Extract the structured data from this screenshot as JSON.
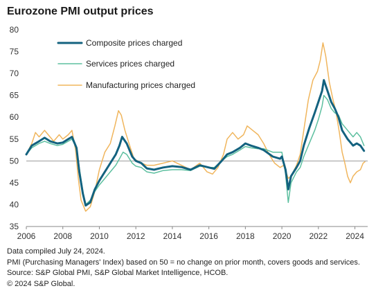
{
  "chart_data": {
    "type": "line",
    "title": "Eurozone PMI output prices",
    "xlabel": "",
    "ylabel": "",
    "xlim": [
      2006,
      2024.7
    ],
    "ylim": [
      35,
      80
    ],
    "xticks": [
      2006,
      2008,
      2010,
      2012,
      2014,
      2016,
      2018,
      2020,
      2022,
      2024
    ],
    "yticks": [
      35,
      40,
      45,
      50,
      55,
      60,
      65,
      70,
      75,
      80
    ],
    "reference_line": 50,
    "legend_position": "top-left",
    "series": [
      {
        "name": "Composite prices charged",
        "color": "#13627f",
        "width": 3,
        "points": [
          [
            2006.0,
            51.5
          ],
          [
            2006.3,
            53.5
          ],
          [
            2006.7,
            54.5
          ],
          [
            2007.0,
            55.3
          ],
          [
            2007.3,
            54.5
          ],
          [
            2007.7,
            54.0
          ],
          [
            2008.0,
            54.2
          ],
          [
            2008.3,
            55.0
          ],
          [
            2008.5,
            55.5
          ],
          [
            2008.75,
            53.0
          ],
          [
            2008.9,
            47.5
          ],
          [
            2009.1,
            42.5
          ],
          [
            2009.25,
            39.8
          ],
          [
            2009.5,
            40.5
          ],
          [
            2009.75,
            43.5
          ],
          [
            2010.0,
            45.5
          ],
          [
            2010.3,
            47.5
          ],
          [
            2010.6,
            49.5
          ],
          [
            2010.9,
            51.5
          ],
          [
            2011.1,
            53.5
          ],
          [
            2011.25,
            55.5
          ],
          [
            2011.5,
            54.0
          ],
          [
            2011.8,
            51.0
          ],
          [
            2012.0,
            50.0
          ],
          [
            2012.3,
            49.5
          ],
          [
            2012.6,
            48.3
          ],
          [
            2013.0,
            48.0
          ],
          [
            2013.5,
            48.5
          ],
          [
            2014.0,
            48.8
          ],
          [
            2014.5,
            48.6
          ],
          [
            2015.0,
            48.0
          ],
          [
            2015.5,
            49.0
          ],
          [
            2016.0,
            48.5
          ],
          [
            2016.3,
            48.2
          ],
          [
            2016.7,
            50.0
          ],
          [
            2017.0,
            51.5
          ],
          [
            2017.3,
            52.0
          ],
          [
            2017.7,
            53.0
          ],
          [
            2018.0,
            54.0
          ],
          [
            2018.3,
            53.5
          ],
          [
            2018.7,
            53.0
          ],
          [
            2019.0,
            52.5
          ],
          [
            2019.5,
            51.0
          ],
          [
            2019.9,
            50.5
          ],
          [
            2020.0,
            51.0
          ],
          [
            2020.2,
            48.0
          ],
          [
            2020.35,
            43.5
          ],
          [
            2020.5,
            46.5
          ],
          [
            2020.8,
            48.5
          ],
          [
            2021.0,
            50.0
          ],
          [
            2021.2,
            53.5
          ],
          [
            2021.5,
            57.5
          ],
          [
            2021.8,
            61.0
          ],
          [
            2022.0,
            63.5
          ],
          [
            2022.2,
            66.0
          ],
          [
            2022.3,
            68.5
          ],
          [
            2022.5,
            66.0
          ],
          [
            2022.7,
            63.5
          ],
          [
            2022.9,
            62.0
          ],
          [
            2023.1,
            60.0
          ],
          [
            2023.3,
            57.0
          ],
          [
            2023.6,
            55.0
          ],
          [
            2023.9,
            53.5
          ],
          [
            2024.1,
            54.0
          ],
          [
            2024.3,
            53.5
          ],
          [
            2024.5,
            52.3
          ]
        ]
      },
      {
        "name": "Services prices charged",
        "color": "#5cbf9f",
        "width": 1.5,
        "points": [
          [
            2006.0,
            51.5
          ],
          [
            2006.3,
            53.0
          ],
          [
            2006.7,
            54.0
          ],
          [
            2007.0,
            54.5
          ],
          [
            2007.3,
            54.0
          ],
          [
            2007.7,
            53.5
          ],
          [
            2008.0,
            53.8
          ],
          [
            2008.3,
            54.5
          ],
          [
            2008.5,
            55.0
          ],
          [
            2008.75,
            53.0
          ],
          [
            2008.9,
            48.5
          ],
          [
            2009.1,
            43.0
          ],
          [
            2009.25,
            40.0
          ],
          [
            2009.5,
            41.0
          ],
          [
            2009.75,
            43.0
          ],
          [
            2010.0,
            44.5
          ],
          [
            2010.3,
            46.0
          ],
          [
            2010.6,
            47.5
          ],
          [
            2010.9,
            49.0
          ],
          [
            2011.1,
            50.5
          ],
          [
            2011.3,
            52.0
          ],
          [
            2011.5,
            51.5
          ],
          [
            2011.8,
            49.5
          ],
          [
            2012.0,
            48.8
          ],
          [
            2012.3,
            48.5
          ],
          [
            2012.6,
            47.5
          ],
          [
            2013.0,
            47.2
          ],
          [
            2013.5,
            47.8
          ],
          [
            2014.0,
            48.0
          ],
          [
            2014.5,
            48.0
          ],
          [
            2015.0,
            47.8
          ],
          [
            2015.5,
            48.8
          ],
          [
            2016.0,
            48.5
          ],
          [
            2016.3,
            48.5
          ],
          [
            2016.7,
            50.0
          ],
          [
            2017.0,
            51.0
          ],
          [
            2017.3,
            51.5
          ],
          [
            2017.7,
            52.5
          ],
          [
            2018.0,
            53.3
          ],
          [
            2018.3,
            53.0
          ],
          [
            2018.7,
            52.8
          ],
          [
            2019.0,
            52.8
          ],
          [
            2019.5,
            52.0
          ],
          [
            2019.9,
            52.0
          ],
          [
            2020.0,
            52.0
          ],
          [
            2020.2,
            47.0
          ],
          [
            2020.35,
            40.5
          ],
          [
            2020.5,
            45.0
          ],
          [
            2020.8,
            47.5
          ],
          [
            2021.0,
            48.5
          ],
          [
            2021.2,
            51.0
          ],
          [
            2021.5,
            54.0
          ],
          [
            2021.8,
            57.0
          ],
          [
            2022.0,
            59.5
          ],
          [
            2022.2,
            62.5
          ],
          [
            2022.3,
            65.0
          ],
          [
            2022.5,
            64.0
          ],
          [
            2022.7,
            62.0
          ],
          [
            2022.9,
            61.0
          ],
          [
            2023.1,
            60.5
          ],
          [
            2023.3,
            58.5
          ],
          [
            2023.6,
            57.0
          ],
          [
            2023.9,
            55.5
          ],
          [
            2024.1,
            56.5
          ],
          [
            2024.3,
            55.5
          ],
          [
            2024.5,
            53.5
          ]
        ]
      },
      {
        "name": "Manufacturing prices charged",
        "color": "#f0b55c",
        "width": 1.5,
        "points": [
          [
            2006.0,
            51.5
          ],
          [
            2006.3,
            54.0
          ],
          [
            2006.5,
            56.5
          ],
          [
            2006.7,
            55.5
          ],
          [
            2007.0,
            57.0
          ],
          [
            2007.2,
            56.0
          ],
          [
            2007.5,
            54.5
          ],
          [
            2007.8,
            56.0
          ],
          [
            2008.0,
            55.0
          ],
          [
            2008.3,
            56.0
          ],
          [
            2008.5,
            57.0
          ],
          [
            2008.7,
            52.5
          ],
          [
            2008.85,
            46.0
          ],
          [
            2009.0,
            41.0
          ],
          [
            2009.25,
            38.5
          ],
          [
            2009.5,
            39.5
          ],
          [
            2009.75,
            43.0
          ],
          [
            2010.0,
            48.0
          ],
          [
            2010.3,
            52.0
          ],
          [
            2010.6,
            54.0
          ],
          [
            2010.85,
            58.0
          ],
          [
            2011.05,
            61.5
          ],
          [
            2011.2,
            60.5
          ],
          [
            2011.4,
            57.0
          ],
          [
            2011.7,
            53.0
          ],
          [
            2011.9,
            50.5
          ],
          [
            2012.1,
            50.0
          ],
          [
            2012.3,
            49.5
          ],
          [
            2012.6,
            49.0
          ],
          [
            2013.0,
            49.0
          ],
          [
            2013.5,
            49.5
          ],
          [
            2014.0,
            50.0
          ],
          [
            2014.5,
            49.0
          ],
          [
            2015.0,
            48.0
          ],
          [
            2015.5,
            49.5
          ],
          [
            2015.9,
            47.5
          ],
          [
            2016.2,
            47.0
          ],
          [
            2016.5,
            48.5
          ],
          [
            2016.8,
            51.5
          ],
          [
            2017.0,
            55.0
          ],
          [
            2017.3,
            56.5
          ],
          [
            2017.6,
            55.0
          ],
          [
            2017.9,
            56.0
          ],
          [
            2018.1,
            58.0
          ],
          [
            2018.4,
            57.0
          ],
          [
            2018.7,
            56.0
          ],
          [
            2019.0,
            54.0
          ],
          [
            2019.3,
            51.5
          ],
          [
            2019.6,
            49.5
          ],
          [
            2019.9,
            48.5
          ],
          [
            2020.1,
            49.0
          ],
          [
            2020.35,
            46.0
          ],
          [
            2020.5,
            46.5
          ],
          [
            2020.8,
            49.0
          ],
          [
            2021.0,
            51.5
          ],
          [
            2021.2,
            57.0
          ],
          [
            2021.45,
            64.0
          ],
          [
            2021.7,
            68.5
          ],
          [
            2021.95,
            70.5
          ],
          [
            2022.1,
            73.0
          ],
          [
            2022.25,
            77.0
          ],
          [
            2022.4,
            74.0
          ],
          [
            2022.6,
            68.0
          ],
          [
            2022.8,
            64.0
          ],
          [
            2022.95,
            61.5
          ],
          [
            2023.15,
            56.5
          ],
          [
            2023.3,
            52.0
          ],
          [
            2023.45,
            49.5
          ],
          [
            2023.6,
            46.5
          ],
          [
            2023.75,
            45.0
          ],
          [
            2023.9,
            46.5
          ],
          [
            2024.1,
            47.5
          ],
          [
            2024.3,
            48.0
          ],
          [
            2024.45,
            49.5
          ],
          [
            2024.55,
            49.8
          ]
        ]
      }
    ]
  },
  "notes": [
    "Data compiled July 24, 2024.",
    "PMI (Purchasing Managers' Index) based on 50 = no change on prior month, covers goods and services.",
    "Source: S&P Global PMI, S&P Global Market Intelligence, HCOB.",
    "© 2024 S&P Global."
  ]
}
